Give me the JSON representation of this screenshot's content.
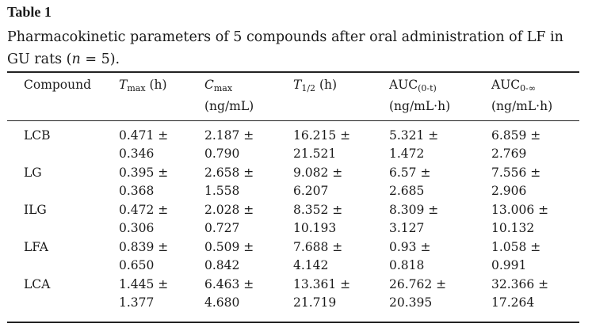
{
  "table": {
    "label": "Table 1",
    "caption_main": "Pharmacokinetic parameters of 5 compounds after oral administration of LF in GU rats (",
    "caption_n": "n",
    "caption_tail": " = 5).",
    "headers": [
      {
        "line1": "Compound",
        "line2": ""
      },
      {
        "sym": "T",
        "sub": "max",
        "unit": " (h)",
        "line2": ""
      },
      {
        "sym": "C",
        "sub": "max",
        "unit": "",
        "line2": "(ng/mL)"
      },
      {
        "sym": "T",
        "sub": "1/2",
        "unit": " (h)",
        "line2": ""
      },
      {
        "sym": "AUC",
        "sub": "(0-t)",
        "unit": "",
        "line2": "(ng/mL·h)"
      },
      {
        "sym": "AUC",
        "sub": "0-∞",
        "unit": "",
        "line2": "(ng/mL·h)"
      }
    ],
    "rows": [
      {
        "compound": "LCB",
        "top": [
          "0.471 ±",
          "2.187 ±",
          "16.215 ±",
          "5.321 ±",
          "6.859 ±"
        ],
        "bottom": [
          "0.346",
          "0.790",
          "21.521",
          "1.472",
          "2.769"
        ]
      },
      {
        "compound": "LG",
        "top": [
          "0.395 ±",
          "2.658 ±",
          "9.082 ±",
          "6.57 ±",
          "7.556 ±"
        ],
        "bottom": [
          "0.368",
          "1.558",
          "6.207",
          "2.685",
          "2.906"
        ]
      },
      {
        "compound": "ILG",
        "top": [
          "0.472 ±",
          "2.028 ±",
          "8.352 ±",
          "8.309 ±",
          "13.006 ±"
        ],
        "bottom": [
          "0.306",
          "0.727",
          "10.193",
          "3.127",
          "10.132"
        ]
      },
      {
        "compound": "LFA",
        "top": [
          "0.839 ±",
          "0.509 ±",
          "7.688 ±",
          "0.93 ±",
          "1.058 ±"
        ],
        "bottom": [
          "0.650",
          "0.842",
          "4.142",
          "0.818",
          "0.991"
        ]
      },
      {
        "compound": "LCA",
        "top": [
          "1.445 ±",
          "6.463 ±",
          "13.361 ±",
          "26.762 ±",
          "32.366 ±"
        ],
        "bottom": [
          "1.377",
          "4.680",
          "21.719",
          "20.395",
          "17.264"
        ]
      }
    ]
  }
}
